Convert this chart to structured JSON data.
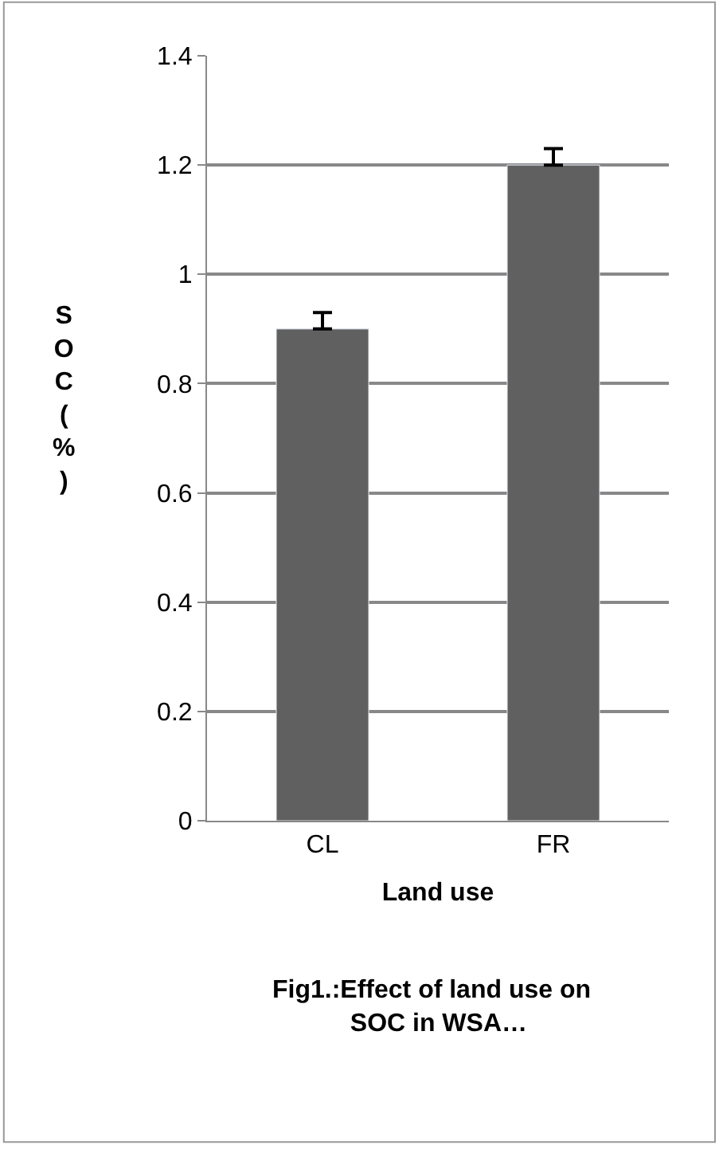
{
  "chart_data": {
    "type": "bar",
    "categories": [
      "CL",
      "FR"
    ],
    "values": [
      0.9,
      1.2
    ],
    "errors": [
      [
        0.9,
        0.93
      ],
      [
        1.2,
        1.23
      ]
    ],
    "color": "#606060",
    "xlabel": "Land use",
    "ylabel": "SOC (%)",
    "ylim": [
      0,
      1.4
    ],
    "yticks": [
      0,
      0.2,
      0.4,
      0.6,
      0.8,
      1,
      1.2,
      1.4
    ],
    "grid": "y",
    "annotations": [
      "Fig1.:Effect of land use on  SOC in WSA…"
    ]
  }
}
